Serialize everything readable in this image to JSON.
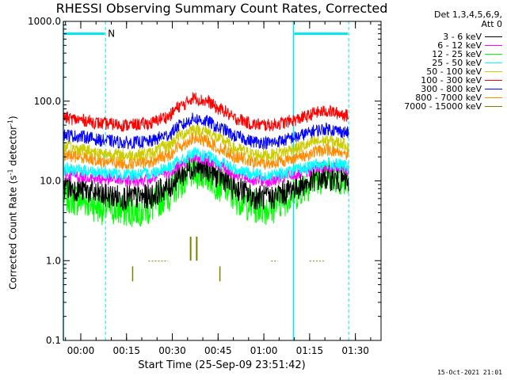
{
  "title": "RHESSI Observing Summary Count Rates, Corrected",
  "legend_header": [
    "Det 1,3,4,5,6,9,",
    "Att 0"
  ],
  "ylabel_main": "Corrected Count Rate (s",
  "ylabel_sup1": "-1",
  "ylabel_mid": " detector",
  "ylabel_sup2": "-1",
  "ylabel_end": ")",
  "xlabel": "Start Time (25-Sep-09 23:51:42)",
  "footer_stamp": "15-Oct-2021 21:01",
  "flag_letter": "N",
  "colors": {
    "night_band": "#00e5ee",
    "axis": "#000000"
  },
  "chart_data": {
    "type": "line",
    "title": "RHESSI Observing Summary Count Rates, Corrected",
    "xlabel": "Start Time (25-Sep-09 23:51:42)",
    "ylabel": "Corrected Count Rate (s^-1 detector^-1)",
    "yscale": "log",
    "ylim": [
      0.1,
      1000
    ],
    "xlim_minutes_after_start": [
      -5.7,
      98.4
    ],
    "y_ticks": [
      "0.1",
      "1.0",
      "10.0",
      "100.0",
      "1000.0"
    ],
    "x_ticks": [
      {
        "label": "00:00",
        "min": 0
      },
      {
        "label": "00:15",
        "min": 15
      },
      {
        "label": "00:30",
        "min": 30
      },
      {
        "label": "00:45",
        "min": 45
      },
      {
        "label": "01:00",
        "min": 60
      },
      {
        "label": "01:15",
        "min": 75
      },
      {
        "label": "01:30",
        "min": 90
      }
    ],
    "x_minutes": [
      -5.7,
      0,
      8,
      15,
      22,
      28,
      33,
      37,
      41,
      46,
      51,
      57,
      62,
      66,
      70,
      74,
      77,
      81,
      85,
      88
    ],
    "series": [
      {
        "name": "3 - 6 keV",
        "color": "#000000",
        "values": [
          8.5,
          7.8,
          6.5,
          6.2,
          6.3,
          8,
          12,
          15,
          14,
          11,
          8,
          6.3,
          6.1,
          7,
          8.2,
          9.2,
          10.5,
          11,
          10.3,
          9.6
        ]
      },
      {
        "name": "6 - 12 keV",
        "color": "#ff00ff",
        "values": [
          12,
          11.5,
          10.5,
          10.2,
          10.4,
          12.5,
          16,
          20,
          18.5,
          15,
          12,
          10.3,
          10,
          10.8,
          12,
          13,
          14.5,
          15,
          14.3,
          13.5
        ]
      },
      {
        "name": "12 - 25 keV",
        "color": "#00ff00",
        "values": [
          6.5,
          5.8,
          4.6,
          4.3,
          4.5,
          6.5,
          10,
          13,
          12,
          9,
          6.2,
          4.8,
          4.6,
          5.8,
          7,
          9,
          11,
          11.5,
          10.8,
          9.8
        ]
      },
      {
        "name": "25 - 50 keV",
        "color": "#00ffff",
        "values": [
          14,
          13.5,
          12.5,
          12,
          12.3,
          14.5,
          18,
          22,
          20.5,
          17,
          13.8,
          12,
          11.8,
          12.5,
          13.5,
          14.5,
          16,
          16.5,
          15.8,
          15
        ]
      },
      {
        "name": "50 - 100 keV",
        "color": "#cccc00",
        "values": [
          27,
          25,
          22,
          21,
          22,
          27,
          38,
          45,
          42,
          33,
          25,
          21.5,
          21,
          23,
          25.5,
          28,
          31,
          32,
          30,
          28
        ]
      },
      {
        "name": "100 - 300 keV",
        "color": "#ff0000",
        "values": [
          62,
          58,
          52,
          50,
          52,
          63,
          88,
          110,
          100,
          78,
          60,
          51,
          50,
          53,
          58,
          64,
          72,
          75,
          70,
          65
        ]
      },
      {
        "name": "300 - 800 keV",
        "color": "#0000ff",
        "values": [
          38,
          36,
          32,
          30,
          31,
          37,
          50,
          60,
          56,
          45,
          36,
          31,
          30,
          32,
          35,
          39,
          43,
          45,
          42,
          40
        ]
      },
      {
        "name": "800 - 7000 keV",
        "color": "#ff8c00",
        "values": [
          21,
          20,
          17.5,
          16.5,
          17,
          20.5,
          28,
          34,
          31.5,
          25,
          20,
          17,
          16.5,
          17.8,
          19.5,
          21,
          23.5,
          24.5,
          23,
          21.5
        ]
      },
      {
        "name": "7000 - 15000 keV",
        "color": "#808000",
        "values": [
          null,
          null,
          null,
          null,
          null,
          0.8,
          0.9,
          1.15,
          0.95,
          0.8,
          null,
          null,
          null,
          null,
          null,
          null,
          0.8,
          0.8,
          null,
          null
        ]
      }
    ],
    "night_intervals_minutes": [
      [
        -5.7,
        8.1
      ],
      [
        69.7,
        87.8
      ]
    ],
    "flag_bars": [
      {
        "label": "N",
        "y": 700,
        "x_start": -5.7,
        "x_end": 8.1
      },
      {
        "label": "",
        "y": 700,
        "x_start": 69.7,
        "x_end": 87.8
      }
    ],
    "spikes_7000_15000": [
      {
        "min": 36,
        "peak": 2.0
      },
      {
        "min": 38,
        "peak": 2.0
      }
    ],
    "grid": false,
    "legend_position": "right, outside plot"
  }
}
